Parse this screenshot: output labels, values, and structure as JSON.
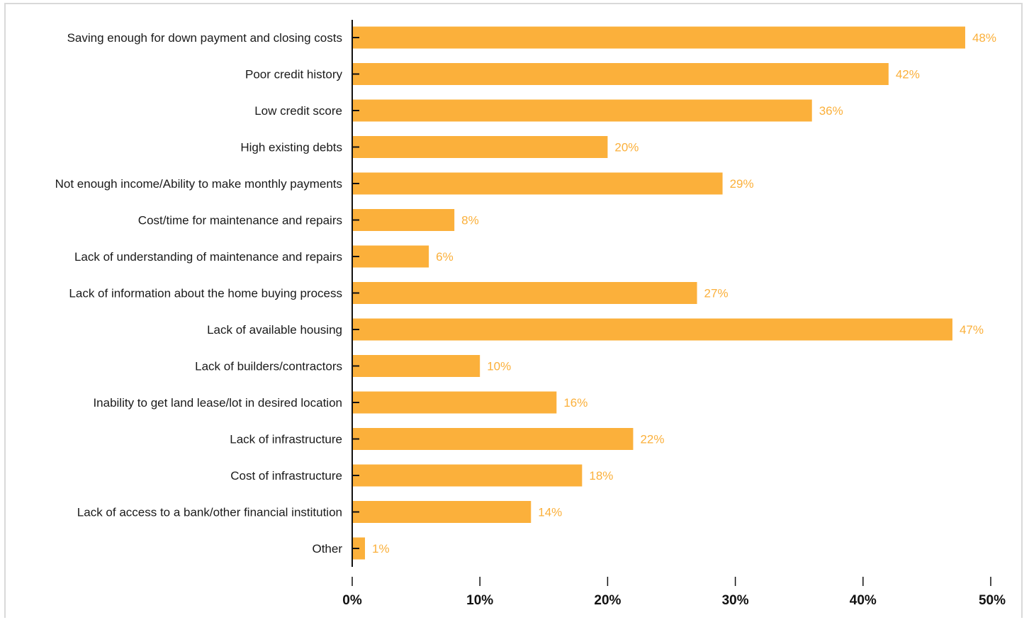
{
  "chart_data": {
    "type": "bar",
    "orientation": "horizontal",
    "categories": [
      "Saving enough for down payment and closing costs",
      "Poor credit history",
      "Low credit score",
      "High existing debts",
      "Not enough income/Ability to make monthly payments",
      "Cost/time for maintenance and repairs",
      "Lack of understanding of maintenance and repairs",
      "Lack of information about the home buying process",
      "Lack of available housing",
      "Lack of builders/contractors",
      "Inability to get land lease/lot in desired location",
      "Lack of infrastructure",
      "Cost of infrastructure",
      "Lack of access to a bank/other financial institution",
      "Other"
    ],
    "values": [
      48,
      42,
      36,
      20,
      29,
      8,
      6,
      27,
      47,
      10,
      16,
      22,
      18,
      14,
      1
    ],
    "value_labels": [
      "48%",
      "42%",
      "36%",
      "20%",
      "29%",
      "8%",
      "6%",
      "27%",
      "47%",
      "10%",
      "16%",
      "22%",
      "18%",
      "14%",
      "1%"
    ],
    "xlim": [
      0,
      50
    ],
    "xticks": [
      0,
      10,
      20,
      30,
      40,
      50
    ],
    "xtick_labels": [
      "0%",
      "10%",
      "20%",
      "30%",
      "40%",
      "50%"
    ],
    "title": "",
    "xlabel": "",
    "ylabel": "",
    "grid": false,
    "legend": "none",
    "colors": {
      "bar": "#FBB03B",
      "label": "#FBB03B",
      "axis": "#111111",
      "text": "#1a1a1a"
    }
  }
}
